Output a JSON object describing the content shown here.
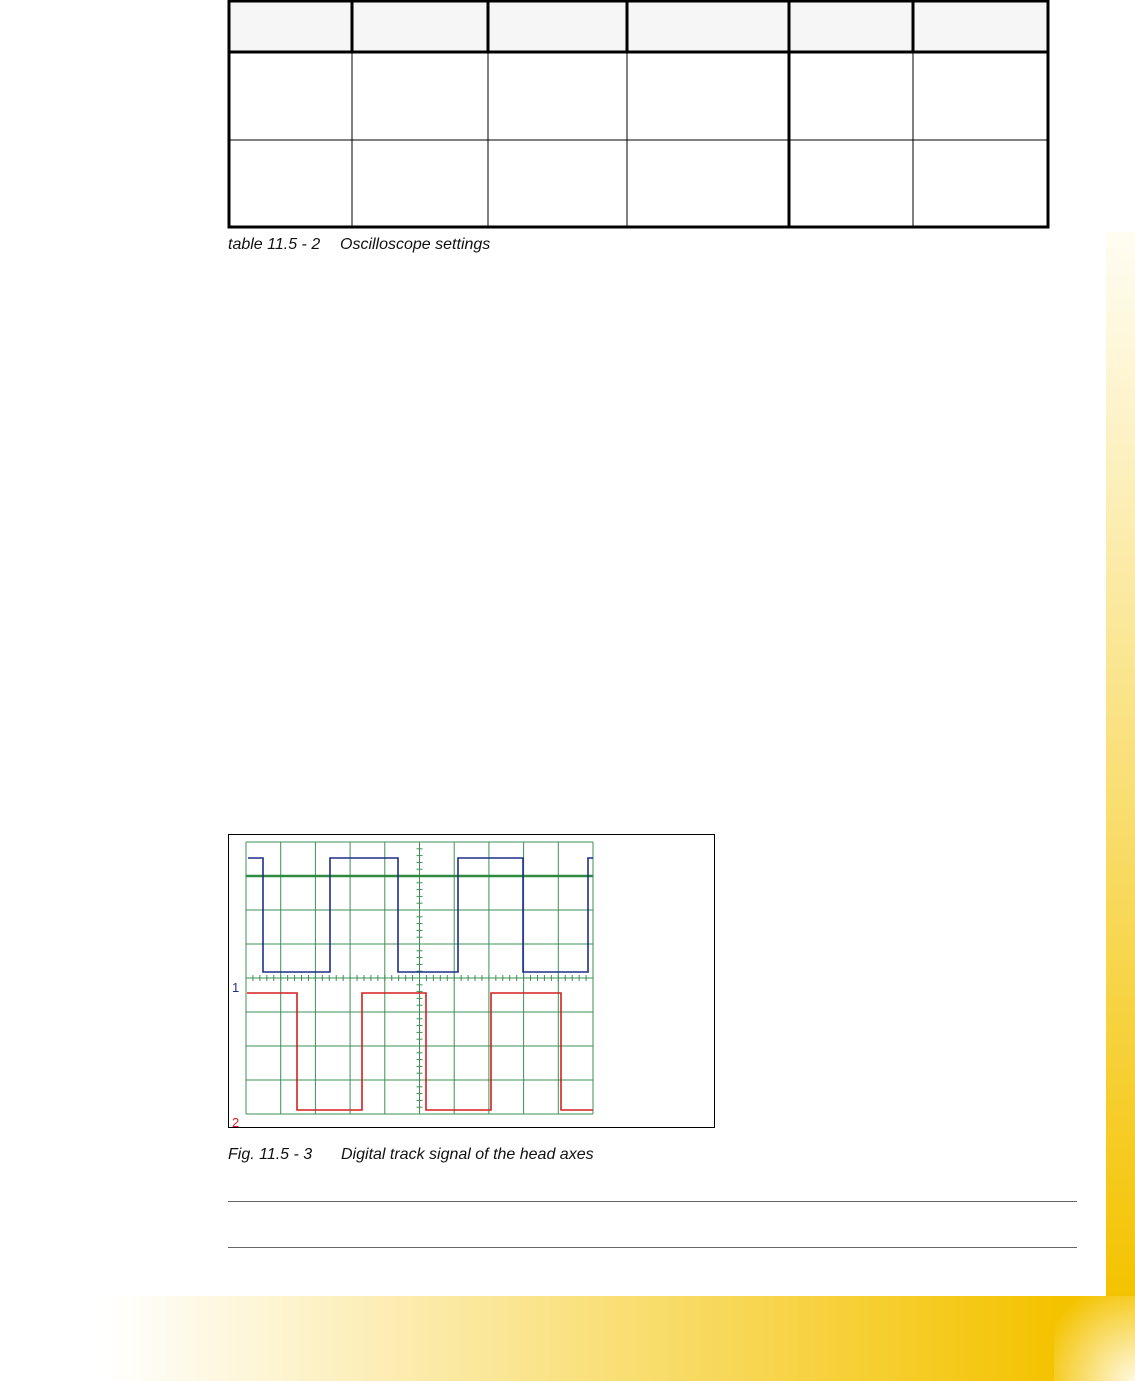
{
  "table": {
    "caption": {
      "number": "table 11.5 - 2",
      "title": "Oscilloscope settings"
    }
  },
  "figure": {
    "channel_labels": [
      "1",
      "2"
    ],
    "caption": {
      "number": "Fig. 11.5 - 3",
      "title": "Digital track signal of the head axes"
    }
  }
}
